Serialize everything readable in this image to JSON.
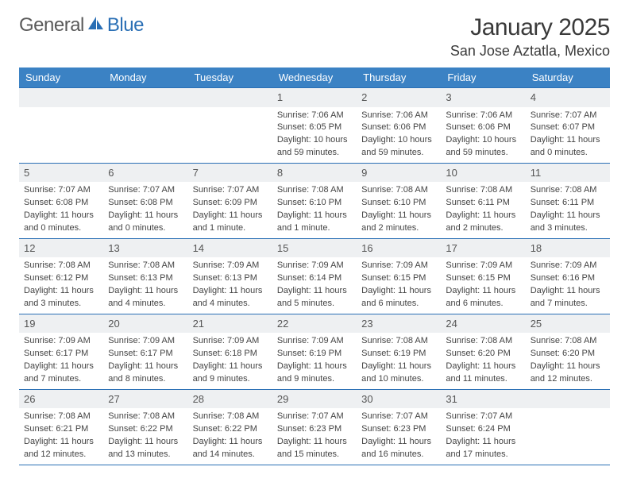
{
  "branding": {
    "logo_text_1": "General",
    "logo_text_2": "Blue",
    "logo_color_gray": "#5a5a5a",
    "logo_color_blue": "#2a6fb5"
  },
  "header": {
    "month_title": "January 2025",
    "location": "San Jose Aztatla, Mexico"
  },
  "colors": {
    "header_bg": "#3b82c4",
    "header_text": "#ffffff",
    "row_border": "#2a6fb5",
    "daynum_bg": "#eef0f2",
    "body_text": "#444444",
    "page_bg": "#ffffff"
  },
  "typography": {
    "title_fontsize": 30,
    "location_fontsize": 18,
    "weekday_fontsize": 13,
    "daynum_fontsize": 13,
    "cell_fontsize": 11
  },
  "calendar": {
    "weekdays": [
      "Sunday",
      "Monday",
      "Tuesday",
      "Wednesday",
      "Thursday",
      "Friday",
      "Saturday"
    ],
    "weeks": [
      [
        null,
        null,
        null,
        {
          "n": "1",
          "sr": "Sunrise: 7:06 AM",
          "ss": "Sunset: 6:05 PM",
          "dl1": "Daylight: 10 hours",
          "dl2": "and 59 minutes."
        },
        {
          "n": "2",
          "sr": "Sunrise: 7:06 AM",
          "ss": "Sunset: 6:06 PM",
          "dl1": "Daylight: 10 hours",
          "dl2": "and 59 minutes."
        },
        {
          "n": "3",
          "sr": "Sunrise: 7:06 AM",
          "ss": "Sunset: 6:06 PM",
          "dl1": "Daylight: 10 hours",
          "dl2": "and 59 minutes."
        },
        {
          "n": "4",
          "sr": "Sunrise: 7:07 AM",
          "ss": "Sunset: 6:07 PM",
          "dl1": "Daylight: 11 hours",
          "dl2": "and 0 minutes."
        }
      ],
      [
        {
          "n": "5",
          "sr": "Sunrise: 7:07 AM",
          "ss": "Sunset: 6:08 PM",
          "dl1": "Daylight: 11 hours",
          "dl2": "and 0 minutes."
        },
        {
          "n": "6",
          "sr": "Sunrise: 7:07 AM",
          "ss": "Sunset: 6:08 PM",
          "dl1": "Daylight: 11 hours",
          "dl2": "and 0 minutes."
        },
        {
          "n": "7",
          "sr": "Sunrise: 7:07 AM",
          "ss": "Sunset: 6:09 PM",
          "dl1": "Daylight: 11 hours",
          "dl2": "and 1 minute."
        },
        {
          "n": "8",
          "sr": "Sunrise: 7:08 AM",
          "ss": "Sunset: 6:10 PM",
          "dl1": "Daylight: 11 hours",
          "dl2": "and 1 minute."
        },
        {
          "n": "9",
          "sr": "Sunrise: 7:08 AM",
          "ss": "Sunset: 6:10 PM",
          "dl1": "Daylight: 11 hours",
          "dl2": "and 2 minutes."
        },
        {
          "n": "10",
          "sr": "Sunrise: 7:08 AM",
          "ss": "Sunset: 6:11 PM",
          "dl1": "Daylight: 11 hours",
          "dl2": "and 2 minutes."
        },
        {
          "n": "11",
          "sr": "Sunrise: 7:08 AM",
          "ss": "Sunset: 6:11 PM",
          "dl1": "Daylight: 11 hours",
          "dl2": "and 3 minutes."
        }
      ],
      [
        {
          "n": "12",
          "sr": "Sunrise: 7:08 AM",
          "ss": "Sunset: 6:12 PM",
          "dl1": "Daylight: 11 hours",
          "dl2": "and 3 minutes."
        },
        {
          "n": "13",
          "sr": "Sunrise: 7:08 AM",
          "ss": "Sunset: 6:13 PM",
          "dl1": "Daylight: 11 hours",
          "dl2": "and 4 minutes."
        },
        {
          "n": "14",
          "sr": "Sunrise: 7:09 AM",
          "ss": "Sunset: 6:13 PM",
          "dl1": "Daylight: 11 hours",
          "dl2": "and 4 minutes."
        },
        {
          "n": "15",
          "sr": "Sunrise: 7:09 AM",
          "ss": "Sunset: 6:14 PM",
          "dl1": "Daylight: 11 hours",
          "dl2": "and 5 minutes."
        },
        {
          "n": "16",
          "sr": "Sunrise: 7:09 AM",
          "ss": "Sunset: 6:15 PM",
          "dl1": "Daylight: 11 hours",
          "dl2": "and 6 minutes."
        },
        {
          "n": "17",
          "sr": "Sunrise: 7:09 AM",
          "ss": "Sunset: 6:15 PM",
          "dl1": "Daylight: 11 hours",
          "dl2": "and 6 minutes."
        },
        {
          "n": "18",
          "sr": "Sunrise: 7:09 AM",
          "ss": "Sunset: 6:16 PM",
          "dl1": "Daylight: 11 hours",
          "dl2": "and 7 minutes."
        }
      ],
      [
        {
          "n": "19",
          "sr": "Sunrise: 7:09 AM",
          "ss": "Sunset: 6:17 PM",
          "dl1": "Daylight: 11 hours",
          "dl2": "and 7 minutes."
        },
        {
          "n": "20",
          "sr": "Sunrise: 7:09 AM",
          "ss": "Sunset: 6:17 PM",
          "dl1": "Daylight: 11 hours",
          "dl2": "and 8 minutes."
        },
        {
          "n": "21",
          "sr": "Sunrise: 7:09 AM",
          "ss": "Sunset: 6:18 PM",
          "dl1": "Daylight: 11 hours",
          "dl2": "and 9 minutes."
        },
        {
          "n": "22",
          "sr": "Sunrise: 7:09 AM",
          "ss": "Sunset: 6:19 PM",
          "dl1": "Daylight: 11 hours",
          "dl2": "and 9 minutes."
        },
        {
          "n": "23",
          "sr": "Sunrise: 7:08 AM",
          "ss": "Sunset: 6:19 PM",
          "dl1": "Daylight: 11 hours",
          "dl2": "and 10 minutes."
        },
        {
          "n": "24",
          "sr": "Sunrise: 7:08 AM",
          "ss": "Sunset: 6:20 PM",
          "dl1": "Daylight: 11 hours",
          "dl2": "and 11 minutes."
        },
        {
          "n": "25",
          "sr": "Sunrise: 7:08 AM",
          "ss": "Sunset: 6:20 PM",
          "dl1": "Daylight: 11 hours",
          "dl2": "and 12 minutes."
        }
      ],
      [
        {
          "n": "26",
          "sr": "Sunrise: 7:08 AM",
          "ss": "Sunset: 6:21 PM",
          "dl1": "Daylight: 11 hours",
          "dl2": "and 12 minutes."
        },
        {
          "n": "27",
          "sr": "Sunrise: 7:08 AM",
          "ss": "Sunset: 6:22 PM",
          "dl1": "Daylight: 11 hours",
          "dl2": "and 13 minutes."
        },
        {
          "n": "28",
          "sr": "Sunrise: 7:08 AM",
          "ss": "Sunset: 6:22 PM",
          "dl1": "Daylight: 11 hours",
          "dl2": "and 14 minutes."
        },
        {
          "n": "29",
          "sr": "Sunrise: 7:07 AM",
          "ss": "Sunset: 6:23 PM",
          "dl1": "Daylight: 11 hours",
          "dl2": "and 15 minutes."
        },
        {
          "n": "30",
          "sr": "Sunrise: 7:07 AM",
          "ss": "Sunset: 6:23 PM",
          "dl1": "Daylight: 11 hours",
          "dl2": "and 16 minutes."
        },
        {
          "n": "31",
          "sr": "Sunrise: 7:07 AM",
          "ss": "Sunset: 6:24 PM",
          "dl1": "Daylight: 11 hours",
          "dl2": "and 17 minutes."
        },
        null
      ]
    ]
  }
}
